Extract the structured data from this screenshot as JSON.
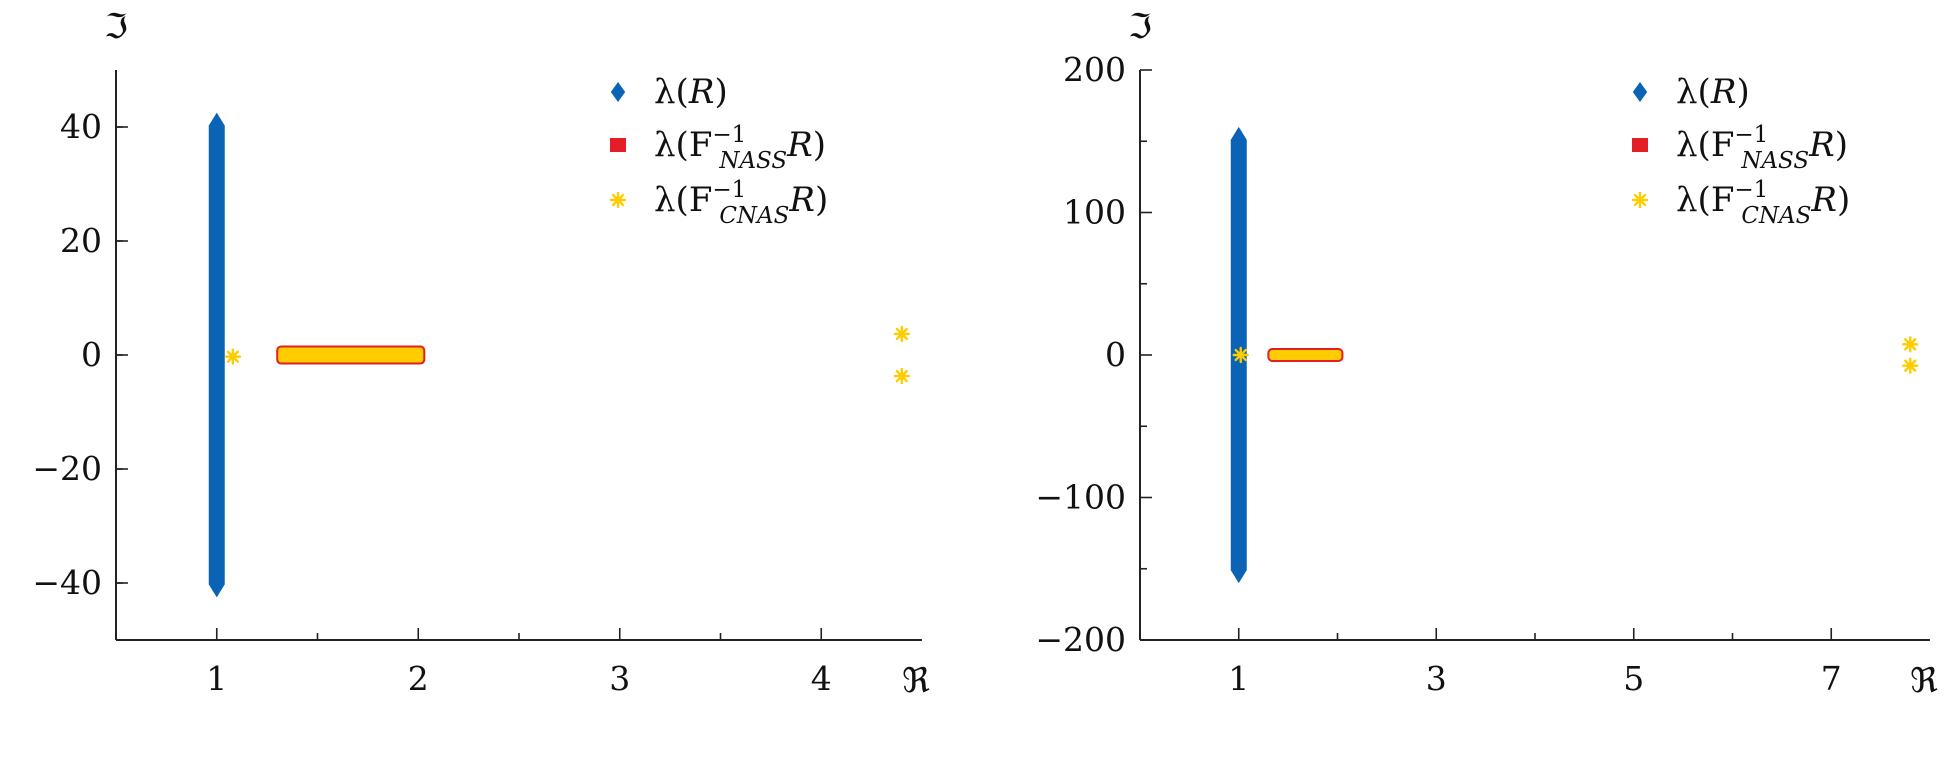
{
  "colors": {
    "blue": "#0a63b4",
    "red": "#e41e26",
    "yellow": "#ffcc00",
    "axis": "#222222"
  },
  "chart_data": [
    {
      "type": "scatter",
      "xlabel": "ℜ",
      "ylabel": "ℑ",
      "xlim": [
        0.5,
        4.5
      ],
      "ylim": [
        -50,
        50
      ],
      "xticks": [
        1,
        2,
        3,
        4
      ],
      "xticklabels": [
        "1",
        "2",
        "3",
        "4"
      ],
      "yticks": [
        -40,
        -20,
        0,
        20,
        40
      ],
      "yticklabels": [
        "−40",
        "−20",
        "0",
        "20",
        "40"
      ],
      "legend_position": "top-right",
      "series": [
        {
          "name": "λ(R)",
          "marker": "diamond",
          "color": "#0a63b4",
          "band": {
            "x": 1,
            "y_min": -42,
            "y_max": 42
          }
        },
        {
          "name": "λ(F_NASS^{-1} R)",
          "marker": "square",
          "color": "#e41e26",
          "band": {
            "x_min": 1.3,
            "x_max": 2.03,
            "y_min": -1.5,
            "y_max": 1.5
          }
        },
        {
          "name": "λ(F_CNAS^{-1} R)",
          "marker": "asterisk",
          "color": "#ffcc00",
          "points": [
            [
              1.08,
              -0.3
            ],
            [
              4.4,
              3.7
            ],
            [
              4.4,
              -3.7
            ]
          ]
        }
      ]
    },
    {
      "type": "scatter",
      "xlabel": "ℜ",
      "ylabel": "ℑ",
      "xlim": [
        0,
        8
      ],
      "ylim": [
        -200,
        200
      ],
      "xticks": [
        1,
        3,
        5,
        7
      ],
      "xticklabels": [
        "1",
        "3",
        "5",
        "7"
      ],
      "yticks": [
        -200,
        -100,
        0,
        100,
        200
      ],
      "yticklabels": [
        "−200",
        "−100",
        "0",
        "100",
        "200"
      ],
      "legend_position": "top-right",
      "series": [
        {
          "name": "λ(R)",
          "marker": "diamond",
          "color": "#0a63b4",
          "band": {
            "x": 1,
            "y_min": -158,
            "y_max": 158
          }
        },
        {
          "name": "λ(F_NASS^{-1} R)",
          "marker": "square",
          "color": "#e41e26",
          "band": {
            "x_min": 1.3,
            "x_max": 2.05,
            "y_min": -3.5,
            "y_max": 3.5
          }
        },
        {
          "name": "λ(F_CNAS^{-1} R)",
          "marker": "asterisk",
          "color": "#ffcc00",
          "points": [
            [
              1.02,
              0
            ],
            [
              7.8,
              7.5
            ],
            [
              7.8,
              -7.5
            ]
          ]
        }
      ]
    }
  ]
}
